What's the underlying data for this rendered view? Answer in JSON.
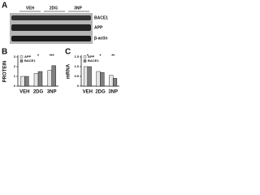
{
  "blot": {
    "label": "A",
    "lanes": [
      "VEH",
      "2DG",
      "3NP"
    ],
    "bands": [
      "BACE1",
      "APP",
      "β-actin"
    ]
  },
  "chart_data": [
    {
      "type": "bar",
      "label": "B",
      "ylabel": "PROTEIN",
      "categories": [
        "VEH",
        "2DG",
        "3NP"
      ],
      "series": [
        {
          "name": "APP",
          "color": "#e6e6e6",
          "values": [
            1,
            1.3,
            1.6
          ]
        },
        {
          "name": "BACE1",
          "color": "#7f7f7f",
          "values": [
            1,
            1.5,
            2.1
          ]
        }
      ],
      "ylim": [
        0,
        3
      ],
      "yticks": [
        0,
        1,
        2,
        3
      ],
      "annotations": [
        "*",
        "***"
      ]
    },
    {
      "type": "bar",
      "label": "C",
      "ylabel": "mRNA",
      "categories": [
        "VEH",
        "2DG",
        "3NP"
      ],
      "series": [
        {
          "name": "APP",
          "color": "#e6e6e6",
          "values": [
            1,
            0.75,
            0.55
          ]
        },
        {
          "name": "BACE1",
          "color": "#7f7f7f",
          "values": [
            1,
            0.7,
            0.4
          ]
        }
      ],
      "ylim": [
        0,
        1.5
      ],
      "yticks": [
        0,
        0.5,
        {
          "value": 1,
          "label": "1.0"
        },
        1.5
      ],
      "annotations": [
        "*",
        "*",
        "**"
      ]
    }
  ]
}
